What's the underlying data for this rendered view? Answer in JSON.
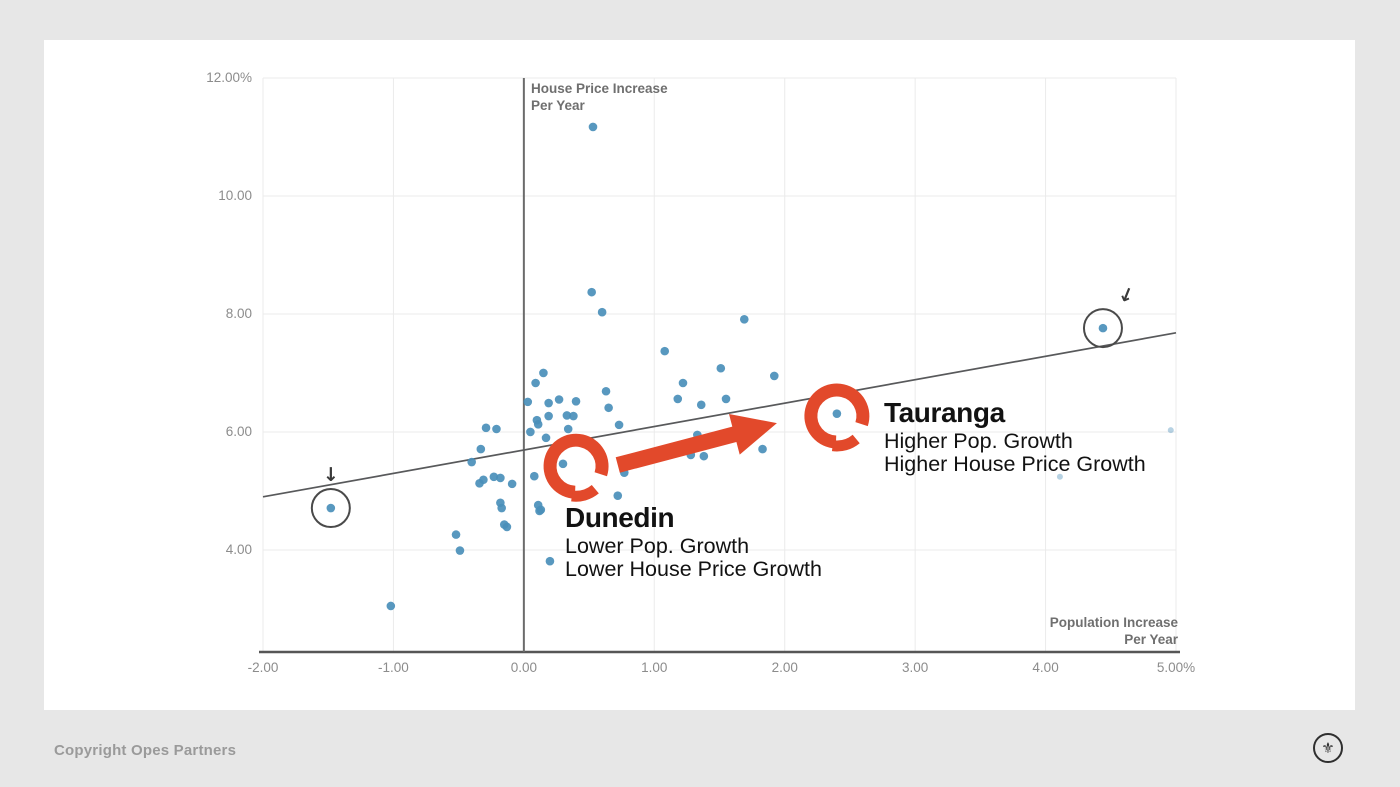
{
  "page": {
    "bg": "#e7e7e7",
    "card_bg": "#ffffff"
  },
  "footer": {
    "copyright": "Copyright Opes Partners",
    "logo_glyph": "⚜"
  },
  "chart_data": {
    "type": "scatter",
    "title": "",
    "xlabel_line1": "Population Increase",
    "xlabel_line2": "Per Year",
    "ylabel_line1": "House Price Increase",
    "ylabel_line2": "Per Year",
    "xlim": [
      -2,
      5.0
    ],
    "ylim": [
      2.27,
      12
    ],
    "grid": true,
    "x_ticks": [
      {
        "v": -2,
        "label": "-2.00"
      },
      {
        "v": -1,
        "label": "-1.00"
      },
      {
        "v": 0,
        "label": "0.00"
      },
      {
        "v": 1,
        "label": "1.00"
      },
      {
        "v": 2,
        "label": "2.00"
      },
      {
        "v": 3,
        "label": "3.00"
      },
      {
        "v": 4,
        "label": "4.00"
      },
      {
        "v": 5,
        "label": "5.00%"
      }
    ],
    "y_ticks": [
      {
        "v": 12,
        "label": "12.00%"
      },
      {
        "v": 10,
        "label": "10.00"
      },
      {
        "v": 8,
        "label": "8.00"
      },
      {
        "v": 6,
        "label": "6.00"
      },
      {
        "v": 4,
        "label": "4.00"
      }
    ],
    "points": [
      [
        0.53,
        11.17
      ],
      [
        0.52,
        8.37
      ],
      [
        0.6,
        8.03
      ],
      [
        1.69,
        7.91
      ],
      [
        4.44,
        7.76
      ],
      [
        1.08,
        7.37
      ],
      [
        1.51,
        7.08
      ],
      [
        0.15,
        7.0
      ],
      [
        1.92,
        6.95
      ],
      [
        0.09,
        6.83
      ],
      [
        1.22,
        6.83
      ],
      [
        0.63,
        6.69
      ],
      [
        1.18,
        6.56
      ],
      [
        1.55,
        6.56
      ],
      [
        0.03,
        6.51
      ],
      [
        0.19,
        6.49
      ],
      [
        0.27,
        6.55
      ],
      [
        0.4,
        6.52
      ],
      [
        1.36,
        6.46
      ],
      [
        0.65,
        6.41
      ],
      [
        2.4,
        6.31
      ],
      [
        0.19,
        6.27
      ],
      [
        0.33,
        6.28
      ],
      [
        0.38,
        6.27
      ],
      [
        0.1,
        6.2
      ],
      [
        0.73,
        6.12
      ],
      [
        -0.29,
        6.07
      ],
      [
        -0.21,
        6.05
      ],
      [
        0.11,
        6.13
      ],
      [
        0.34,
        6.05
      ],
      [
        1.33,
        5.95
      ],
      [
        1.36,
        5.87
      ],
      [
        0.05,
        6.0
      ],
      [
        0.17,
        5.9
      ],
      [
        -0.33,
        5.71
      ],
      [
        1.83,
        5.71
      ],
      [
        1.28,
        5.61
      ],
      [
        1.38,
        5.59
      ],
      [
        -0.4,
        5.49
      ],
      [
        0.3,
        5.46
      ],
      [
        -0.31,
        5.19
      ],
      [
        -0.34,
        5.13
      ],
      [
        -0.23,
        5.24
      ],
      [
        -0.18,
        5.22
      ],
      [
        -0.09,
        5.12
      ],
      [
        0.08,
        5.25
      ],
      [
        0.77,
        5.31
      ],
      [
        -1.48,
        4.71
      ],
      [
        -0.18,
        4.8
      ],
      [
        -0.17,
        4.71
      ],
      [
        0.11,
        4.76
      ],
      [
        0.13,
        4.68
      ],
      [
        0.72,
        4.92
      ],
      [
        -0.15,
        4.43
      ],
      [
        -0.13,
        4.39
      ],
      [
        0.12,
        4.66
      ],
      [
        -0.52,
        4.26
      ],
      [
        -0.49,
        3.99
      ],
      [
        0.2,
        3.81
      ],
      [
        -1.02,
        3.05
      ]
    ],
    "faint_points": [
      [
        4.11,
        5.24
      ],
      [
        4.96,
        6.03
      ]
    ],
    "point_color": "#4a8fba",
    "grid_color": "#ebebeb",
    "tick_color": "#8c8c8c",
    "zero_line_color": "#6b6b6b",
    "axis_line_color": "#565656",
    "trend_line": {
      "x1": -2,
      "y1": 4.9,
      "x2": 5.0,
      "y2": 7.68,
      "color": "#58595b"
    },
    "highlight_circles": [
      {
        "x": -1.48,
        "y": 4.71,
        "r": 19,
        "arrow_rotation": 0
      },
      {
        "x": 4.44,
        "y": 7.76,
        "r": 19,
        "arrow_rotation": 22
      }
    ],
    "arrow_glyph": "↓",
    "accent_color": "#e2492b",
    "big_arrow": {
      "from": [
        0.72,
        5.44
      ],
      "to": [
        1.94,
        6.15
      ]
    },
    "annotations": {
      "dunedin": {
        "title": "Dunedin",
        "line1": "Lower Pop. Growth",
        "line2": "Lower House Price Growth",
        "marker": {
          "x": 0.4,
          "y": 5.42
        }
      },
      "tauranga": {
        "title": "Tauranga",
        "line1": "Higher Pop. Growth",
        "line2": "Higher House Price Growth",
        "marker": {
          "x": 2.4,
          "y": 6.27
        }
      }
    }
  }
}
